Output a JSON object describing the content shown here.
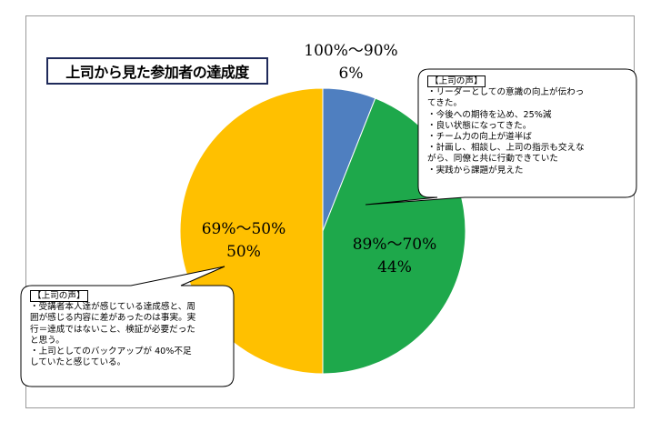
{
  "chart_data": {
    "type": "pie",
    "title": "上司から見た参加者の達成度",
    "slices": [
      {
        "label": "100%～90%",
        "value": 6,
        "value_label": "6%",
        "color": "#4f7fc0"
      },
      {
        "label": "89%～70%",
        "value": 44,
        "value_label": "44%",
        "color": "#1ea84b"
      },
      {
        "label": "69%～50%",
        "value": 50,
        "value_label": "50%",
        "color": "#ffc000"
      }
    ],
    "start_angle_deg": 0,
    "direction": "clockwise"
  },
  "callouts": [
    {
      "header": "【上司の声】",
      "lines": [
        "・リーダーとしての意識の向上が伝わっ",
        "てきた。",
        "・今後への期待を込め、25%減",
        "・良い状態になってきた。",
        "・チーム力の向上が道半ば",
        "・計画し、相談し、上司の指示も交えな",
        "がら、同僚と共に行動できていた",
        "・実践から課題が見えた"
      ]
    },
    {
      "header": "【上司の声】",
      "lines": [
        "・受講者本人達が感じている達成感と、周",
        "囲が感じる内容に差があったのは事実。実",
        "行＝達成ではないこと、検証が必要だった",
        "と思う。",
        "・上司としてのバックアップが 40%不足",
        "していたと感じている。"
      ]
    }
  ],
  "colors": {
    "frame_border": "#9a9a9a",
    "title_border": "#1f2a5a",
    "slice_border": "#ffffff"
  }
}
